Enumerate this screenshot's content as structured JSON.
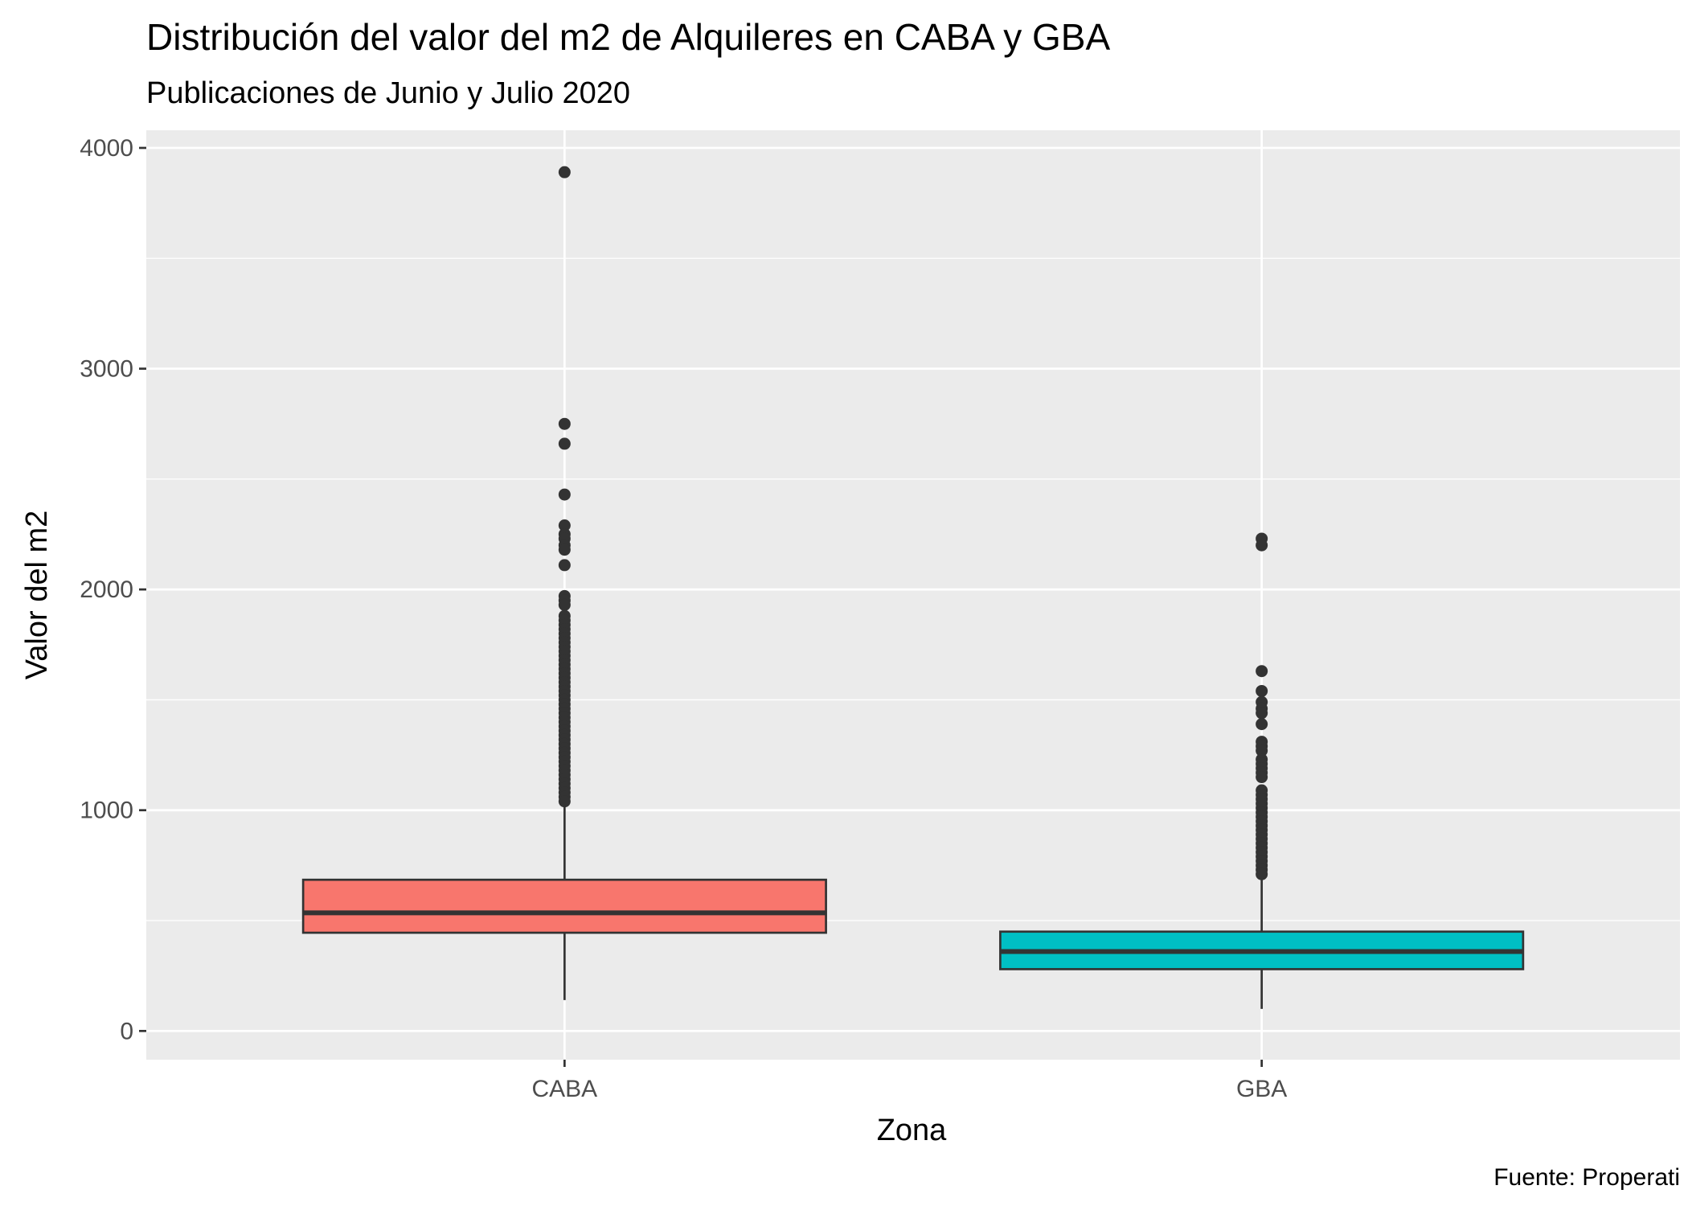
{
  "title": "Distribución del valor del m2 de Alquileres en CABA y GBA",
  "subtitle": "Publicaciones de Junio y Julio 2020",
  "caption": "Fuente: Properati",
  "chart_data": {
    "type": "boxplot",
    "title": "Distribución del valor del m2 de Alquileres en CABA y GBA",
    "subtitle": "Publicaciones de Junio y Julio 2020",
    "xlabel": "Zona",
    "ylabel": "Valor del m2",
    "categories": [
      "CABA",
      "GBA"
    ],
    "ylim": [
      -130,
      4080
    ],
    "yticks": [
      0,
      1000,
      2000,
      3000,
      4000
    ],
    "grid": true,
    "legend": "none",
    "boxes": [
      {
        "name": "CABA",
        "color": "#F8766D",
        "whisker_low": 140,
        "q1": 445,
        "median": 535,
        "q3": 685,
        "whisker_high": 1030,
        "outliers": [
          3890,
          2750,
          2660,
          2430,
          2290,
          2250,
          2230,
          2200,
          2180,
          2110,
          1970,
          1950,
          1930,
          1880,
          1860,
          1840,
          1820,
          1800,
          1780,
          1760,
          1740,
          1720,
          1700,
          1680,
          1660,
          1640,
          1620,
          1600,
          1580,
          1560,
          1540,
          1520,
          1500,
          1480,
          1460,
          1440,
          1420,
          1400,
          1380,
          1360,
          1340,
          1320,
          1300,
          1280,
          1260,
          1240,
          1220,
          1200,
          1180,
          1160,
          1140,
          1120,
          1100,
          1080,
          1060,
          1040
        ]
      },
      {
        "name": "GBA",
        "color": "#00BFC4",
        "whisker_low": 100,
        "q1": 280,
        "median": 360,
        "q3": 450,
        "whisker_high": 690,
        "outliers": [
          2230,
          2200,
          1630,
          1540,
          1490,
          1460,
          1440,
          1390,
          1310,
          1290,
          1270,
          1230,
          1210,
          1190,
          1170,
          1150,
          1090,
          1070,
          1050,
          1030,
          1010,
          990,
          970,
          950,
          930,
          910,
          890,
          870,
          850,
          830,
          810,
          790,
          770,
          750,
          730,
          710
        ]
      }
    ]
  }
}
